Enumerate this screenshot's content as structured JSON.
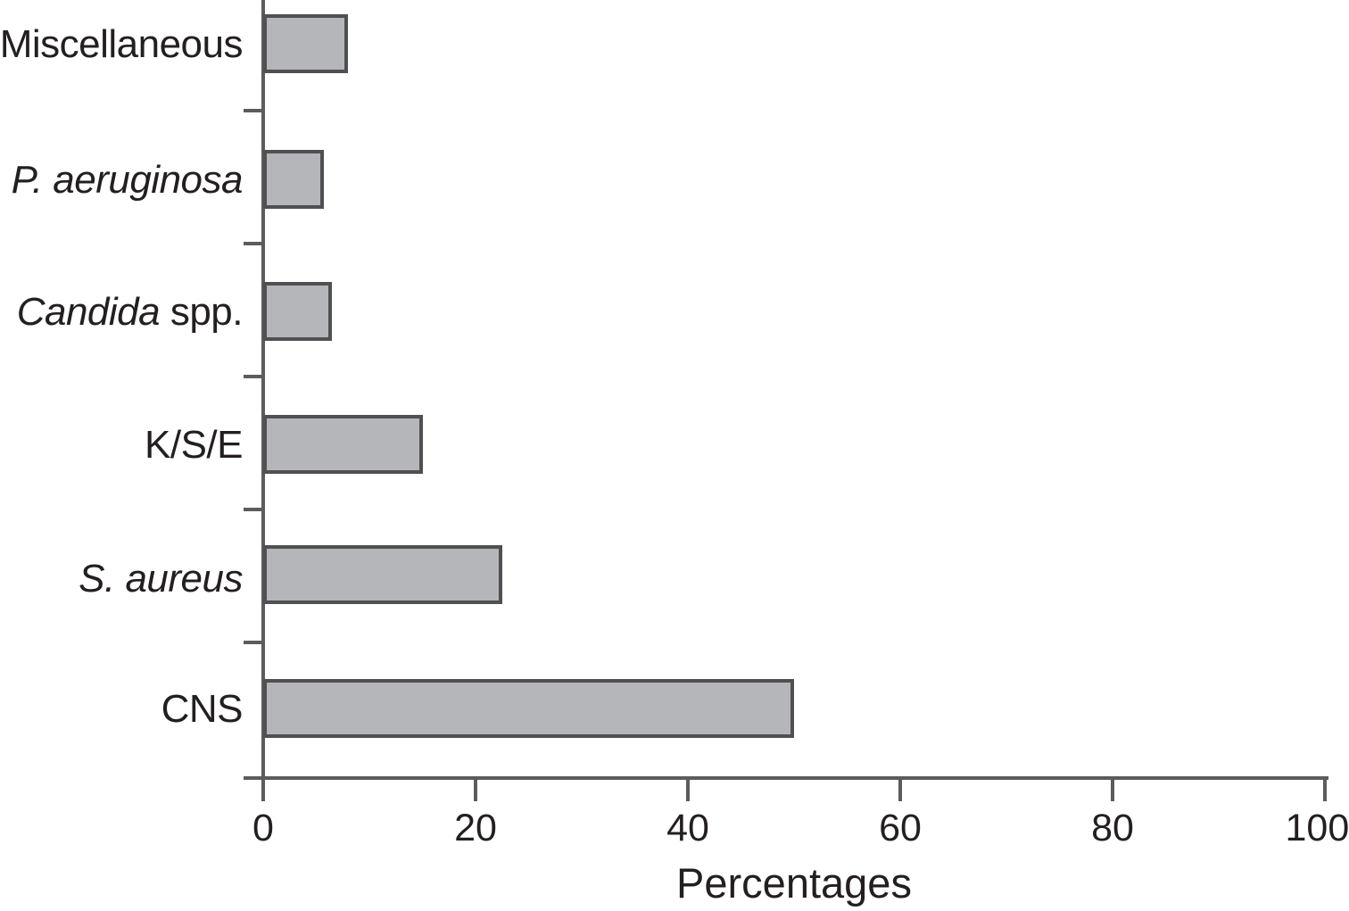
{
  "chart_data": {
    "type": "bar",
    "orientation": "horizontal",
    "title": "",
    "xlabel": "Percentages",
    "ylabel": "",
    "xlim": [
      0,
      100
    ],
    "xticks": [
      0,
      20,
      40,
      60,
      80,
      100
    ],
    "grid": false,
    "legend": null,
    "categories": [
      "Miscellaneous",
      "P. aeruginosa",
      "Candida spp.",
      "K/S/E",
      "S. aureus",
      "CNS"
    ],
    "values": [
      8,
      5.7,
      6.5,
      15,
      22.5,
      50
    ],
    "rows": [
      {
        "label_italic": "",
        "label_regular": "Miscellaneous",
        "value": 8
      },
      {
        "label_italic": "P. aeruginosa",
        "label_regular": "",
        "value": 5.7
      },
      {
        "label_italic": "Candida",
        "label_regular": " spp.",
        "value": 6.5
      },
      {
        "label_italic": "",
        "label_regular": "K/S/E",
        "value": 15
      },
      {
        "label_italic": "S. aureus",
        "label_regular": "",
        "value": 22.5
      },
      {
        "label_italic": "",
        "label_regular": "CNS",
        "value": 50
      }
    ],
    "colors": {
      "bar_fill": "#b5b6b9",
      "bar_border": "#4f5052",
      "axis": "#5b5c5e",
      "text": "#231f20"
    }
  }
}
